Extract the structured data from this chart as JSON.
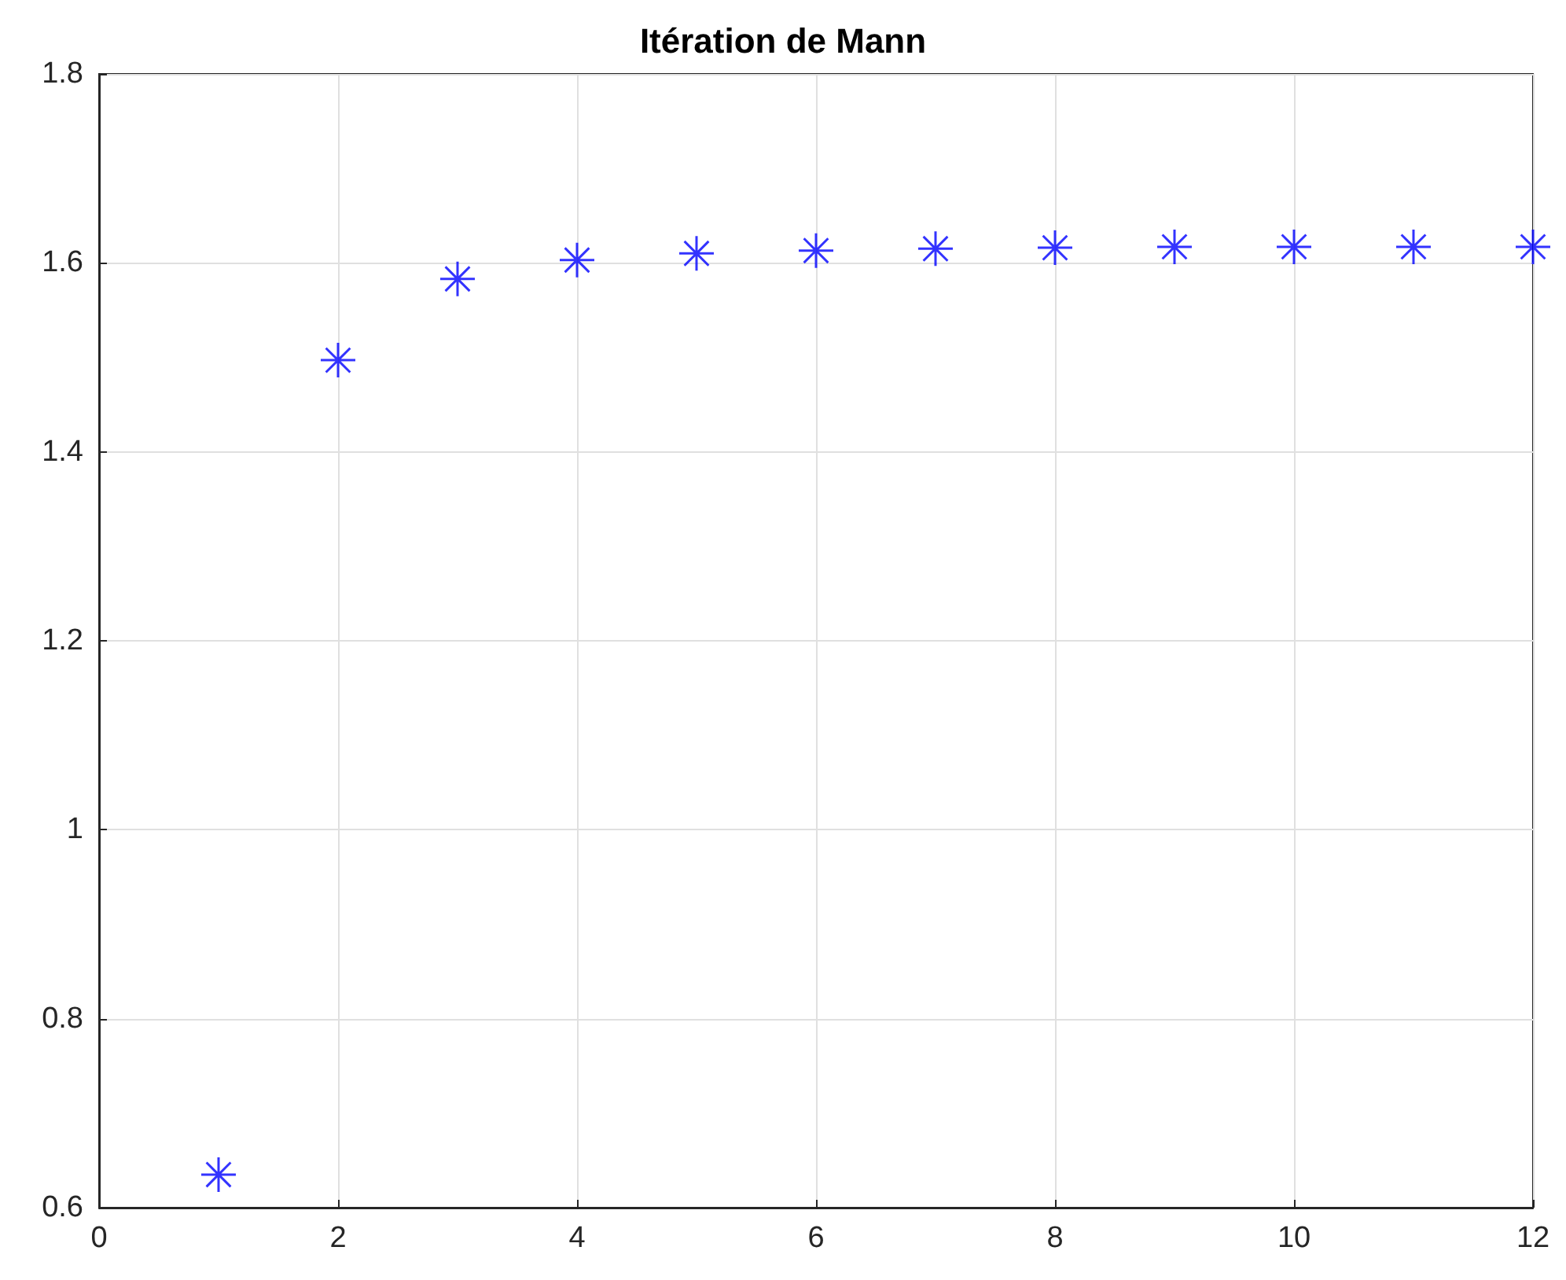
{
  "chart_data": {
    "type": "scatter",
    "title": "Itération de Mann",
    "x": [
      1,
      2,
      3,
      4,
      5,
      6,
      7,
      8,
      9,
      10,
      11,
      12
    ],
    "series": [
      {
        "color": "#0000ff",
        "values": [
          0.635,
          1.497,
          1.583,
          1.603,
          1.61,
          1.613,
          1.615,
          1.616,
          1.617,
          1.617,
          1.617,
          1.617
        ]
      }
    ],
    "xlim": [
      0,
      12
    ],
    "xticks": [
      0,
      2,
      4,
      6,
      8,
      10,
      12
    ],
    "ylim": [
      0.6,
      1.8
    ],
    "yticks": [
      0.6,
      0.8,
      1,
      1.2,
      1.4,
      1.6,
      1.8
    ],
    "grid": true,
    "marker": "cross"
  }
}
